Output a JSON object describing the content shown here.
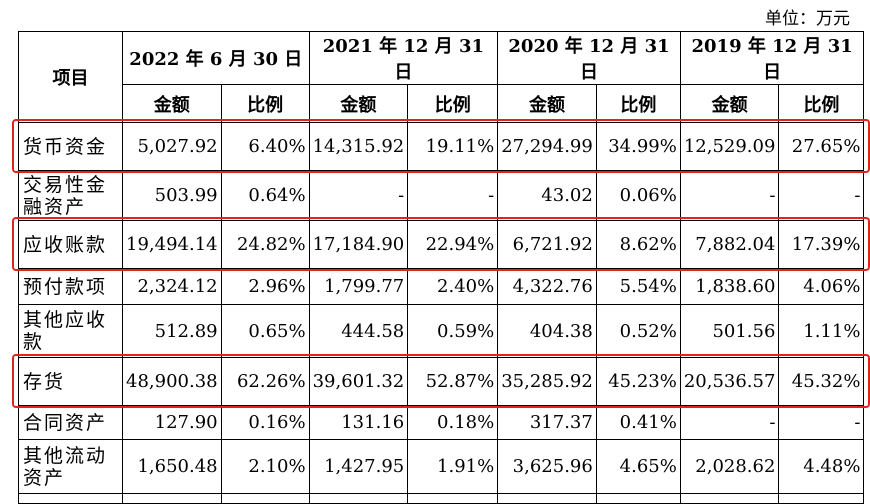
{
  "unit_label": "单位：万元",
  "header": {
    "item": "项目",
    "periods": [
      "2022 年 6 月 30 日",
      "2021 年 12 月 31 日",
      "2020 年 12 月 31 日",
      "2019 年 12 月 31 日"
    ],
    "amount": "金额",
    "ratio": "比例"
  },
  "rows": [
    {
      "name": "货币资金",
      "values": [
        "5,027.92",
        "6.40%",
        "14,315.92",
        "19.11%",
        "27,294.99",
        "34.99%",
        "12,529.09",
        "27.65%"
      ],
      "highlighted": true
    },
    {
      "name": "交易性金融资产",
      "values": [
        "503.99",
        "0.64%",
        "-",
        "-",
        "43.02",
        "0.06%",
        "-",
        "-"
      ],
      "highlighted": false
    },
    {
      "name": "应收账款",
      "values": [
        "19,494.14",
        "24.82%",
        "17,184.90",
        "22.94%",
        "6,721.92",
        "8.62%",
        "7,882.04",
        "17.39%"
      ],
      "highlighted": true
    },
    {
      "name": "预付款项",
      "values": [
        "2,324.12",
        "2.96%",
        "1,799.77",
        "2.40%",
        "4,322.76",
        "5.54%",
        "1,838.60",
        "4.06%"
      ],
      "highlighted": false
    },
    {
      "name": "其他应收款",
      "values": [
        "512.89",
        "0.65%",
        "444.58",
        "0.59%",
        "404.38",
        "0.52%",
        "501.56",
        "1.11%"
      ],
      "highlighted": false
    },
    {
      "name": "存货",
      "values": [
        "48,900.38",
        "62.26%",
        "39,601.32",
        "52.87%",
        "35,285.92",
        "45.23%",
        "20,536.57",
        "45.32%"
      ],
      "highlighted": true
    },
    {
      "name": "合同资产",
      "values": [
        "127.90",
        "0.16%",
        "131.16",
        "0.18%",
        "317.37",
        "0.41%",
        "-",
        "-"
      ],
      "highlighted": false
    },
    {
      "name": "其他流动资产",
      "values": [
        "1,650.48",
        "2.10%",
        "1,427.95",
        "1.91%",
        "3,625.96",
        "4.65%",
        "2,028.62",
        "4.48%"
      ],
      "highlighted": false
    },
    {
      "name": "",
      "values": [
        "",
        "",
        "",
        "",
        "",
        "",
        "",
        ""
      ],
      "highlighted": false
    }
  ],
  "highlight_color": "#e0231c"
}
